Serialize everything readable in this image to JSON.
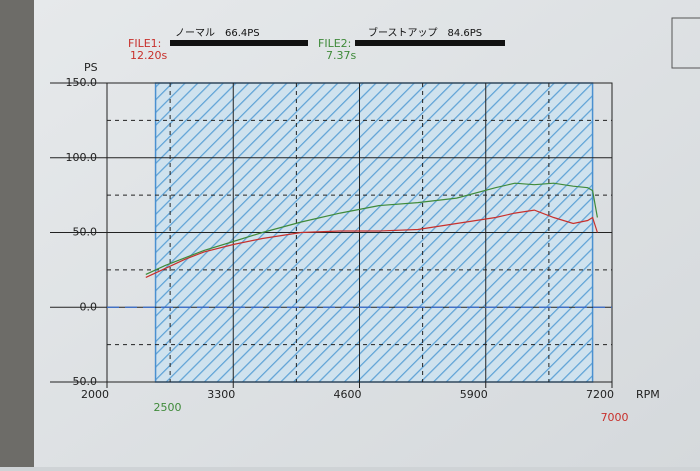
{
  "chart_data": {
    "type": "line",
    "y_label": "PS",
    "x_label": "RPM",
    "xlim": [
      2000,
      7200
    ],
    "xticks": [
      2000,
      3300,
      4600,
      5900,
      7200
    ],
    "xminor": [
      2650,
      3950,
      5250,
      6550
    ],
    "ylim": [
      -50,
      150
    ],
    "yticks": [
      {
        "value": 150,
        "label": "150.0"
      },
      {
        "value": 100,
        "label": "100.0"
      },
      {
        "value": 50,
        "label": "50.0"
      },
      {
        "value": 0,
        "label": "0.0"
      },
      {
        "value": -50,
        "label": "-50.0"
      }
    ],
    "yminor": [
      125,
      75,
      25,
      -25
    ],
    "grid": true,
    "range_start": 2500,
    "range_end": 7000,
    "x": [
      2400,
      2600,
      2800,
      3000,
      3300,
      3600,
      4000,
      4400,
      4800,
      5200,
      5600,
      6000,
      6200,
      6400,
      6600,
      6800,
      6950,
      7000,
      7050
    ],
    "series": [
      {
        "name": "FILE1:",
        "time": "12.20s",
        "note": "ノーマル　66.4PS",
        "color": "#c8302c",
        "values": [
          20,
          26,
          32,
          37,
          42,
          46,
          50,
          51,
          51,
          52,
          56,
          60,
          63,
          65,
          60,
          56,
          58,
          60,
          50
        ]
      },
      {
        "name": "FILE2:",
        "time": "7.37s",
        "note": "ブーストアップ　84.6PS",
        "color": "#3f8a3a",
        "values": [
          22,
          28,
          33,
          38,
          44,
          50,
          57,
          63,
          68,
          70,
          73,
          80,
          83,
          82,
          83,
          81,
          80,
          78,
          60
        ]
      }
    ]
  }
}
